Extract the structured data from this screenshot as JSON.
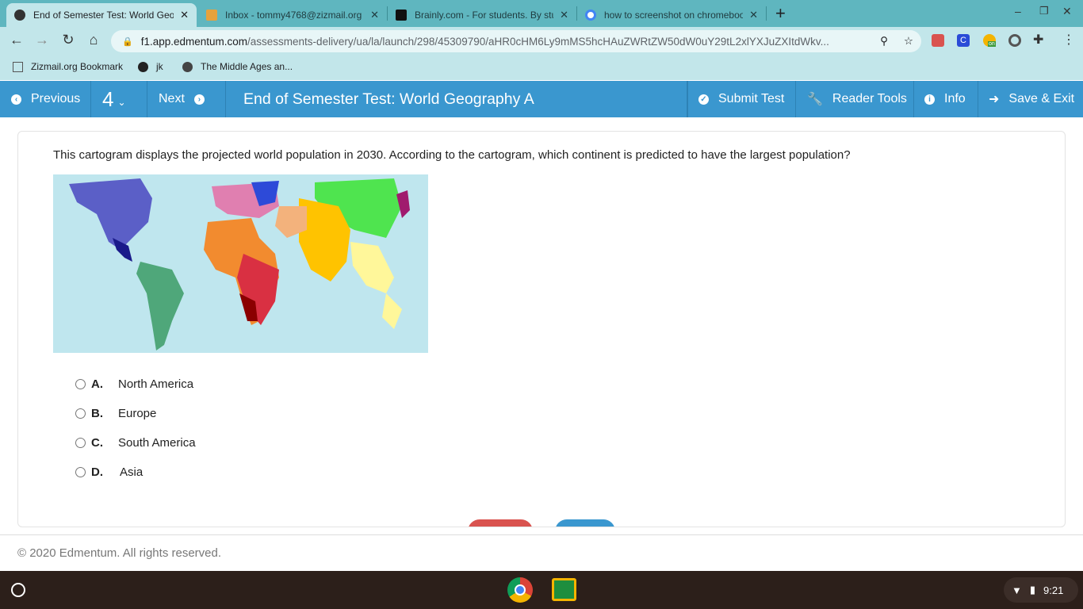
{
  "browser": {
    "tabs": [
      {
        "title": "End of Semester Test: World Geography A",
        "active": true
      },
      {
        "title": "Inbox - tommy4768@zizmail.org"
      },
      {
        "title": "Brainly.com - For students. By students."
      },
      {
        "title": "how to screenshot on chromebook"
      }
    ],
    "new_tab": "+",
    "url_host": "f1.app.edmentum.com",
    "url_path": "/assessments-delivery/ua/la/launch/298/45309790/aHR0cHM6Ly9mMS5hcHAuZWRtZW50dW0uY29tL2xlYXJuZXItdWkv...",
    "bookmarks": [
      "Zizmail.org Bookmark",
      "jk",
      "The Middle Ages an..."
    ],
    "extension_badge": "on"
  },
  "appbar": {
    "previous": "Previous",
    "question_number": "4",
    "next": "Next",
    "title": "End of Semester Test: World Geography A",
    "submit": "Submit Test",
    "reader_tools": "Reader Tools",
    "info": "Info",
    "save_exit": "Save & Exit"
  },
  "question": {
    "text": "This cartogram displays the projected world population in 2030. According to the cartogram, which continent is predicted to have the largest population?",
    "options": [
      {
        "letter": "A.",
        "text": "North America"
      },
      {
        "letter": "B.",
        "text": "Europe"
      },
      {
        "letter": "C.",
        "text": "South America"
      },
      {
        "letter": "D.",
        "text": "Asia"
      }
    ]
  },
  "footer": "© 2020 Edmentum. All rights reserved.",
  "shelf": {
    "time": "9:21"
  },
  "colors": {
    "appbar": "#3a97cf",
    "tabbar": "#5fb6bf"
  }
}
